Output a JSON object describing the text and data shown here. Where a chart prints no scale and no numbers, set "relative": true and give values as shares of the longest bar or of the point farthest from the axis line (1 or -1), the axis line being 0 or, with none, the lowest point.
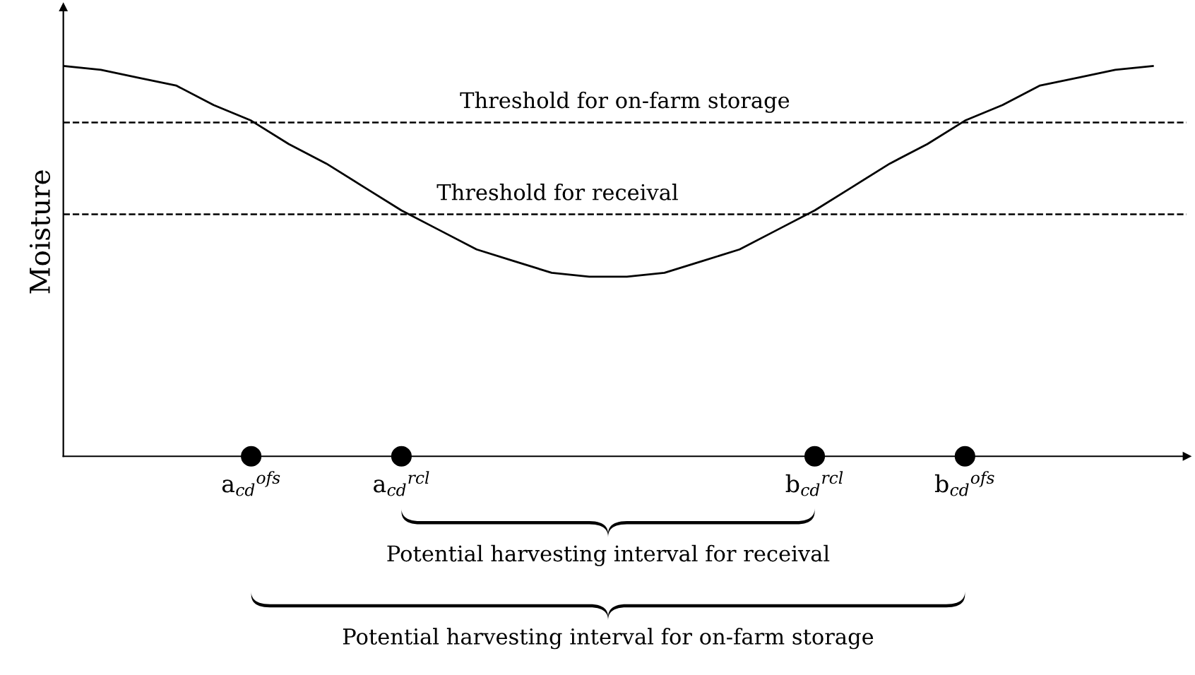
{
  "chart_data": {
    "type": "line",
    "relative": true,
    "ylabel": "Moisture",
    "categories": [
      null,
      null,
      null,
      null,
      null,
      "a$_{cd}$$^{ofs}$",
      null,
      null,
      null,
      "a$_{cd}$$^{rcl}$",
      null,
      null,
      null,
      null,
      null,
      null,
      null,
      null,
      null,
      null,
      "b$_{cd}$$^{rcl}$",
      null,
      null,
      null,
      "b$_{cd}$$^{ofs}$",
      null,
      null,
      null,
      null,
      null
    ],
    "series": [
      {
        "color": "#000000",
        "values": [
          1.0,
          0.99,
          0.97,
          0.95,
          0.9,
          0.86,
          0.8,
          0.75,
          0.69,
          0.63,
          0.58,
          0.53,
          0.5,
          0.47,
          0.46,
          0.46,
          0.47,
          0.5,
          0.53,
          0.58,
          0.63,
          0.69,
          0.75,
          0.8,
          0.86,
          0.9,
          0.95,
          0.97,
          0.99,
          1.0
        ]
      },
      {
        "type": "scatter",
        "color": "#000000",
        "marker": "circle",
        "values": [
          null,
          null,
          null,
          null,
          null,
          0,
          null,
          null,
          null,
          0,
          null,
          null,
          null,
          null,
          null,
          null,
          null,
          null,
          null,
          null,
          0,
          null,
          null,
          null,
          0,
          null,
          null,
          null,
          null,
          null
        ]
      }
    ],
    "ref_lines": [
      {
        "axis": "y",
        "value": 0.855,
        "label": "Threshold for on-farm storage",
        "color": "#000000",
        "line_style": "dashed"
      },
      {
        "axis": "y",
        "value": 0.62,
        "label": "Threshold for receival",
        "color": "#000000",
        "line_style": "dashed"
      }
    ],
    "annotations": [
      "Potential harvesting interval for receival",
      "Potential harvesting interval for on-farm storage"
    ],
    "legend": false
  }
}
